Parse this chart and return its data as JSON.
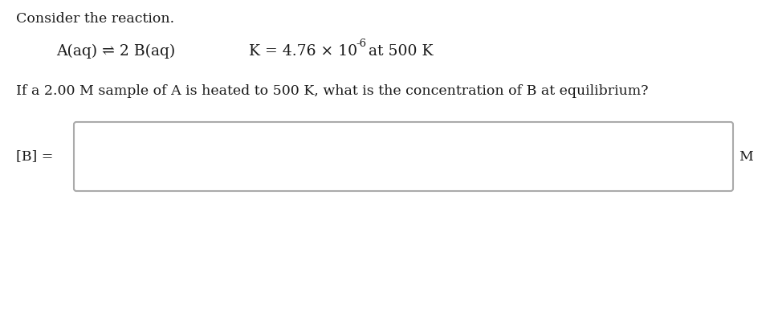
{
  "title_line": "Consider the reaction.",
  "reaction_text": "A(aq) ⇌ 2 B(aq)",
  "k_text": "K = 4.76 × 10⁻⁶at 500 K",
  "k_prefix": "K = 4.76 × 10",
  "k_superscript": "-6",
  "k_suffix": "at 500 K",
  "question": "If a 2.00 M sample of A is heated to 500 K, what is the concentration of B at equilibrium?",
  "answer_label": "[B] =",
  "answer_unit": "M",
  "bg_color": "#ffffff",
  "text_color": "#1a1a1a",
  "box_edge_color": "#aaaaaa",
  "font_size_title": 12.5,
  "font_size_body": 12.5,
  "font_size_reaction": 13.5,
  "font_size_super": 9.5
}
